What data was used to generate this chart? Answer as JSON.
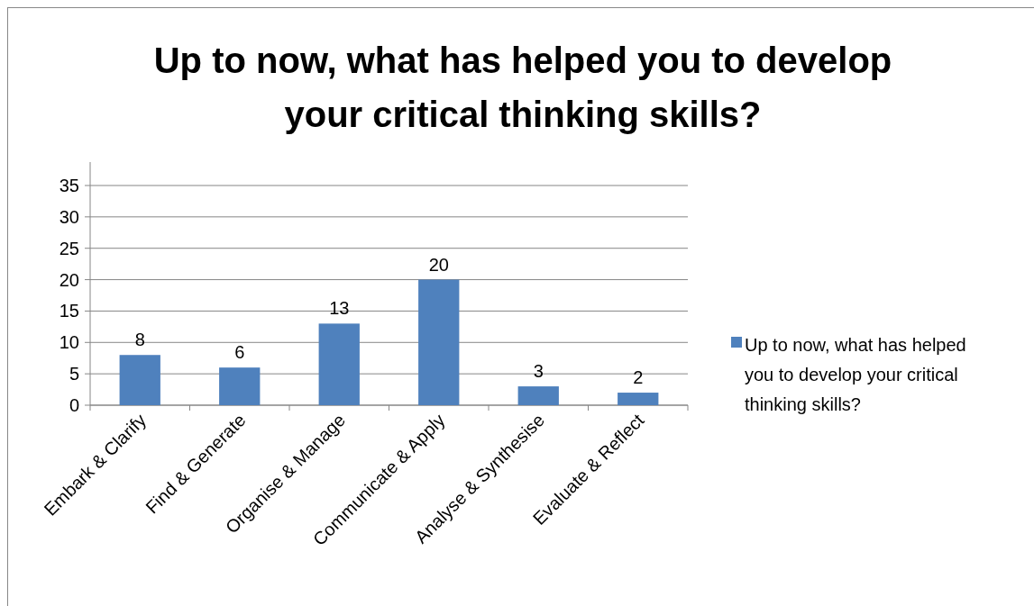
{
  "chart_data": {
    "type": "bar",
    "title": "Up to now, what has helped you to develop your critical thinking skills?",
    "categories": [
      "Embark & Clarify",
      "Find & Generate",
      "Organise & Manage",
      "Communicate & Apply",
      "Analyse & Synthesise",
      "Evaluate & Reflect"
    ],
    "series": [
      {
        "name": "Up to now, what has helped you to develop your critical thinking skills?",
        "color": "#4f81bd",
        "values": [
          8,
          6,
          13,
          20,
          3,
          2
        ]
      }
    ],
    "ylim": [
      0,
      35
    ],
    "yticks": [
      0,
      5,
      10,
      15,
      20,
      25,
      30,
      35
    ],
    "grid": "y",
    "legend": "right",
    "data_labels": true
  }
}
